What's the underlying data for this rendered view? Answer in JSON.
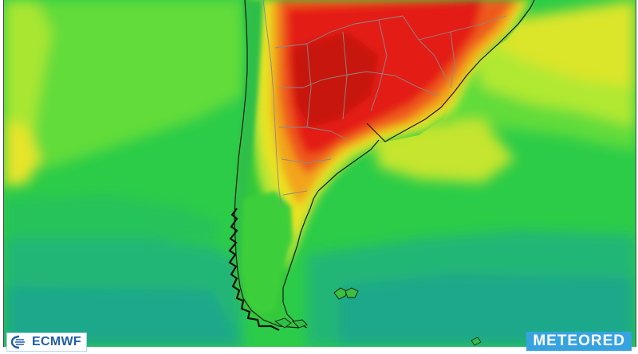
{
  "logos": {
    "left": "ECMWF",
    "right": "METEORED"
  },
  "caption": "",
  "colors": {
    "deep_teal": "#1aa88a",
    "teal": "#24b87a",
    "green": "#2ed04a",
    "light_green": "#6fe03a",
    "yellow_green": "#b8ea30",
    "yellow": "#e9e823",
    "orange": "#f2a51c",
    "red_orange": "#ec4a1a",
    "red": "#e41a14",
    "dark_red": "#b80f0f",
    "border": "#8a8a8a",
    "coast": "#1a1a1a",
    "meteored_blue": "#36a3df",
    "ecmwf_blue": "#1f5fa6"
  },
  "icons": {
    "ecmwf": "ecmwf-logo-icon"
  }
}
